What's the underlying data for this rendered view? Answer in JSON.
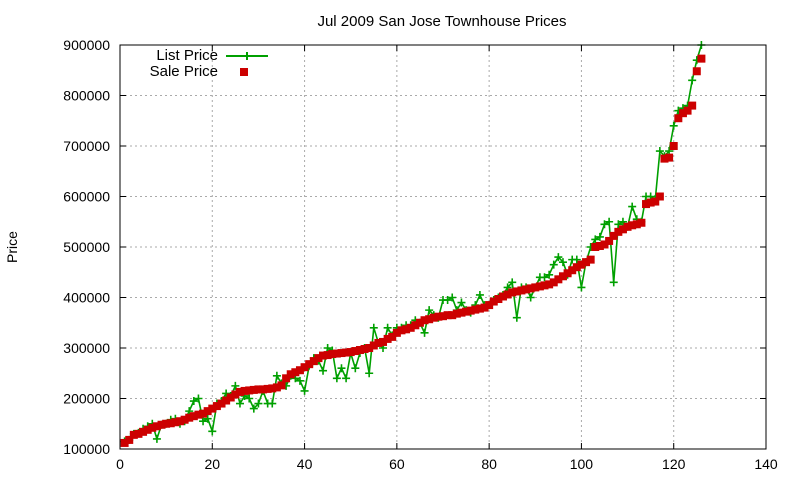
{
  "chart_data": {
    "type": "line",
    "title": "Jul 2009 San Jose Townhouse Prices",
    "xlabel": "",
    "ylabel": "Price",
    "xlim": [
      0,
      140
    ],
    "ylim": [
      100000,
      900000
    ],
    "x_ticks": [
      "0",
      "20",
      "40",
      "60",
      "80",
      "100",
      "120",
      "140"
    ],
    "y_ticks": [
      "100000",
      "200000",
      "300000",
      "400000",
      "500000",
      "600000",
      "700000",
      "800000",
      "900000"
    ],
    "grid": true,
    "legend_position": "top-left",
    "series": [
      {
        "name": "List Price",
        "style": "line+plus",
        "color": "#00a000",
        "x": [
          1,
          2,
          3,
          4,
          5,
          6,
          7,
          8,
          9,
          10,
          11,
          12,
          13,
          14,
          15,
          16,
          17,
          18,
          19,
          20,
          21,
          22,
          23,
          24,
          25,
          26,
          27,
          28,
          29,
          30,
          31,
          32,
          33,
          34,
          35,
          36,
          37,
          38,
          39,
          40,
          41,
          42,
          43,
          44,
          45,
          46,
          47,
          48,
          49,
          50,
          51,
          52,
          53,
          54,
          55,
          56,
          57,
          58,
          59,
          60,
          61,
          62,
          63,
          64,
          65,
          66,
          67,
          68,
          69,
          70,
          71,
          72,
          73,
          74,
          75,
          76,
          77,
          78,
          79,
          80,
          81,
          82,
          83,
          84,
          85,
          86,
          87,
          88,
          89,
          90,
          91,
          92,
          93,
          94,
          95,
          96,
          97,
          98,
          99,
          100,
          101,
          102,
          103,
          104,
          105,
          106,
          107,
          108,
          109,
          110,
          111,
          112,
          113,
          114,
          115,
          116,
          117,
          118,
          119,
          120,
          121,
          122,
          123,
          124,
          125,
          126
        ],
        "y": [
          115000,
          118000,
          130000,
          132000,
          140000,
          145000,
          150000,
          120000,
          148000,
          150000,
          158000,
          160000,
          150000,
          155000,
          175000,
          195000,
          200000,
          155000,
          160000,
          135000,
          190000,
          195000,
          210000,
          205000,
          225000,
          190000,
          205000,
          200000,
          180000,
          190000,
          215000,
          190000,
          190000,
          245000,
          230000,
          225000,
          245000,
          240000,
          235000,
          215000,
          265000,
          280000,
          275000,
          255000,
          300000,
          295000,
          240000,
          260000,
          240000,
          290000,
          260000,
          290000,
          300000,
          250000,
          340000,
          310000,
          300000,
          340000,
          325000,
          340000,
          340000,
          345000,
          345000,
          355000,
          350000,
          330000,
          375000,
          365000,
          360000,
          395000,
          395000,
          400000,
          375000,
          390000,
          375000,
          370000,
          385000,
          405000,
          385000,
          385000,
          395000,
          400000,
          405000,
          420000,
          430000,
          360000,
          420000,
          420000,
          400000,
          420000,
          440000,
          440000,
          445000,
          465000,
          480000,
          470000,
          445000,
          475000,
          475000,
          420000,
          470000,
          500000,
          515000,
          520000,
          545000,
          550000,
          430000,
          545000,
          550000,
          540000,
          580000,
          555000,
          550000,
          600000,
          600000,
          595000,
          690000,
          680000,
          690000,
          740000,
          770000,
          775000,
          780000,
          830000,
          870000,
          900000
        ]
      },
      {
        "name": "Sale Price",
        "style": "square-points",
        "color": "#cc0000",
        "x": [
          1,
          2,
          3,
          4,
          5,
          6,
          7,
          8,
          9,
          10,
          11,
          12,
          13,
          14,
          15,
          16,
          17,
          18,
          19,
          20,
          21,
          22,
          23,
          24,
          25,
          26,
          27,
          28,
          29,
          30,
          31,
          32,
          33,
          34,
          35,
          36,
          37,
          38,
          39,
          40,
          41,
          42,
          43,
          44,
          45,
          46,
          47,
          48,
          49,
          50,
          51,
          52,
          53,
          54,
          55,
          56,
          57,
          58,
          59,
          60,
          61,
          62,
          63,
          64,
          65,
          66,
          67,
          68,
          69,
          70,
          71,
          72,
          73,
          74,
          75,
          76,
          77,
          78,
          79,
          80,
          81,
          82,
          83,
          84,
          85,
          86,
          87,
          88,
          89,
          90,
          91,
          92,
          93,
          94,
          95,
          96,
          97,
          98,
          99,
          100,
          101,
          102,
          103,
          104,
          105,
          106,
          107,
          108,
          109,
          110,
          111,
          112,
          113,
          114,
          115,
          116,
          117,
          118,
          119,
          120,
          121,
          122,
          123,
          124,
          125,
          126
        ],
        "y": [
          112000,
          118000,
          128000,
          130000,
          134000,
          138000,
          142000,
          145000,
          148000,
          150000,
          151000,
          153000,
          155000,
          158000,
          162000,
          165000,
          168000,
          170000,
          175000,
          180000,
          185000,
          190000,
          196000,
          202000,
          208000,
          213000,
          215000,
          216000,
          217000,
          218000,
          218000,
          219000,
          220000,
          222000,
          226000,
          240000,
          248000,
          252000,
          256000,
          262000,
          268000,
          274000,
          280000,
          285000,
          286000,
          288000,
          289000,
          290000,
          291000,
          292000,
          294000,
          296000,
          298000,
          300000,
          305000,
          310000,
          312000,
          318000,
          322000,
          330000,
          335000,
          337000,
          340000,
          345000,
          350000,
          355000,
          357000,
          360000,
          362000,
          363000,
          365000,
          365000,
          368000,
          370000,
          372000,
          374000,
          376000,
          378000,
          380000,
          385000,
          392000,
          397000,
          402000,
          406000,
          410000,
          412000,
          414000,
          416000,
          418000,
          420000,
          422000,
          424000,
          426000,
          430000,
          436000,
          442000,
          448000,
          454000,
          460000,
          465000,
          470000,
          475000,
          500000,
          502000,
          505000,
          512000,
          522000,
          530000,
          535000,
          540000,
          543000,
          545000,
          548000,
          585000,
          588000,
          590000,
          600000,
          675000,
          677000,
          700000,
          755000,
          765000,
          770000,
          780000,
          848000,
          873000
        ]
      }
    ]
  }
}
